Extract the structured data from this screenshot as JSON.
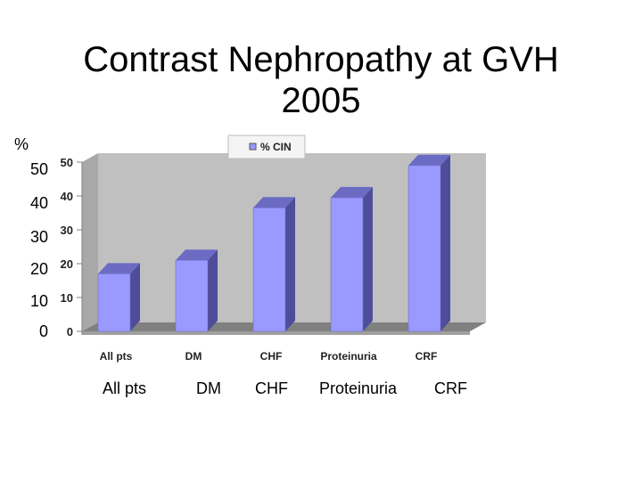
{
  "slide": {
    "title_line1": "Contrast Nephropathy at GVH",
    "title_line2": "2005",
    "y_unit_label": "%",
    "y_ticks": [
      "50",
      "40",
      "30",
      "20",
      "10",
      "0"
    ],
    "x_labels": [
      "All pts",
      "DM",
      "CHF",
      "Proteinuria",
      "CRF"
    ]
  },
  "chart_data": {
    "type": "bar",
    "categories": [
      "All pts",
      "DM",
      "CHF",
      "Proteinuria",
      "CRF"
    ],
    "series": [
      {
        "name": "% CIN",
        "values": [
          17,
          21,
          36.5,
          39.5,
          49
        ]
      }
    ],
    "ylim": [
      0,
      50
    ],
    "y_ticks": [
      "0",
      "10",
      "20",
      "30",
      "40",
      "50"
    ],
    "legend": "top-center",
    "grid": false,
    "colors": {
      "bar_front": "#9999ff",
      "bar_side": "#4d4d99",
      "bar_top": "#6b6bc4",
      "wall": "#c0c0c0",
      "floor": "#808080"
    }
  }
}
